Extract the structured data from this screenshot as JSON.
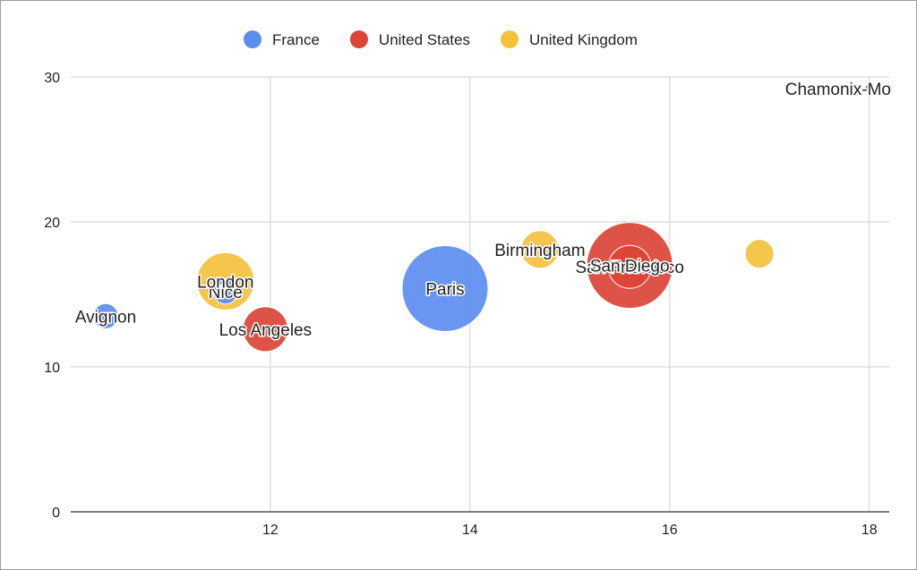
{
  "chart_data": {
    "type": "bubble",
    "xlim": [
      10,
      18.2
    ],
    "ylim": [
      0,
      30
    ],
    "x_ticks": [
      12,
      14,
      16,
      18
    ],
    "y_ticks": [
      0,
      10,
      20,
      30
    ],
    "grid": true,
    "legend_position": "top",
    "series": [
      {
        "name": "France",
        "color": "#5b8def"
      },
      {
        "name": "United States",
        "color": "#db4437"
      },
      {
        "name": "United Kingdom",
        "color": "#f4c13d"
      }
    ],
    "points": [
      {
        "label": "Paris",
        "series": "France",
        "x": 13.75,
        "y": 15.4,
        "size": 48
      },
      {
        "label": "Nice",
        "series": "France",
        "x": 11.55,
        "y": 15.2,
        "size": 14
      },
      {
        "label": "Avignon",
        "series": "France",
        "x": 10.35,
        "y": 13.5,
        "size": 14
      },
      {
        "label": "Chamonix-Mont-Blanc",
        "series": "France",
        "x": 18.0,
        "y": 29.2,
        "size": 5
      },
      {
        "label": "London",
        "series": "United Kingdom",
        "x": 11.55,
        "y": 15.9,
        "size": 32
      },
      {
        "label": "Birmingham",
        "series": "United Kingdom",
        "x": 14.7,
        "y": 18.1,
        "size": 21
      },
      {
        "label": "",
        "series": "United Kingdom",
        "x": 16.9,
        "y": 17.8,
        "size": 16
      },
      {
        "label": "Los Angeles",
        "series": "United States",
        "x": 11.95,
        "y": 12.6,
        "size": 25
      },
      {
        "label": "San Francisco",
        "series": "United States",
        "x": 15.6,
        "y": 16.9,
        "size": 24
      },
      {
        "label": "San Diego",
        "series": "United States",
        "x": 15.6,
        "y": 17.0,
        "size": 48
      }
    ]
  }
}
